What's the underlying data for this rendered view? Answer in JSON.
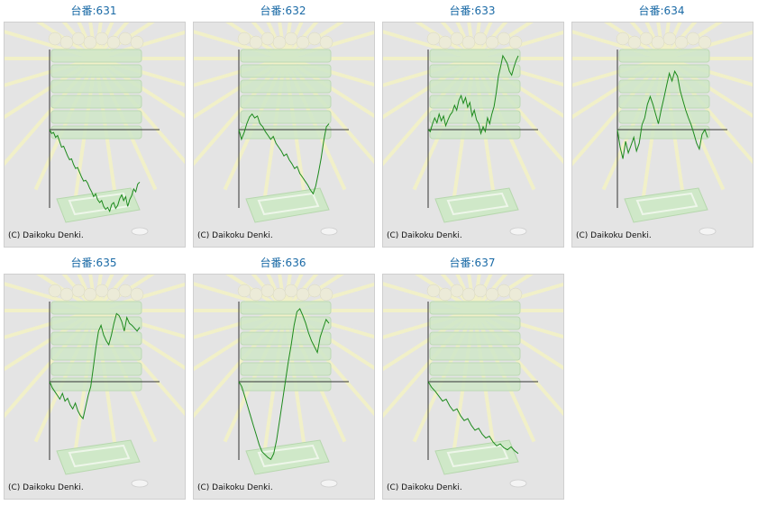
{
  "copyright": "(C) Daikoku Denki.",
  "colors": {
    "line": "#1d8a1d",
    "title": "#1a6aa6",
    "background": "#e4e4e4",
    "axis": "#333333"
  },
  "chart_data": [
    {
      "type": "line",
      "title": "台番:631",
      "y": [
        0,
        -4,
        -3,
        -8,
        -6,
        -12,
        -18,
        -17,
        -22,
        -27,
        -31,
        -30,
        -36,
        -40,
        -39,
        -44,
        -49,
        -53,
        -52,
        -55,
        -60,
        -64,
        -69,
        -66,
        -72,
        -75,
        -73,
        -79,
        -82,
        -80,
        -84,
        -77,
        -75,
        -81,
        -78,
        -71,
        -67,
        -73,
        -69,
        -79,
        -72,
        -68,
        -61,
        -64,
        -56,
        -54
      ]
    },
    {
      "type": "line",
      "title": "台番:632",
      "y": [
        0,
        -10,
        -3,
        6,
        13,
        16,
        12,
        14,
        6,
        3,
        -2,
        -6,
        -10,
        -7,
        -14,
        -18,
        -22,
        -27,
        -25,
        -31,
        -35,
        -40,
        -38,
        -45,
        -49,
        -53,
        -57,
        -62,
        -66,
        -58,
        -45,
        -30,
        -12,
        3,
        6
      ]
    },
    {
      "type": "line",
      "title": "台番:633",
      "y": [
        0,
        -2,
        6,
        12,
        7,
        16,
        9,
        14,
        4,
        10,
        15,
        18,
        25,
        20,
        30,
        35,
        27,
        33,
        23,
        28,
        14,
        20,
        10,
        6,
        -4,
        3,
        -2,
        12,
        6,
        16,
        24,
        38,
        55,
        65,
        76,
        72,
        68,
        60,
        56,
        64,
        71,
        76
      ]
    },
    {
      "type": "line",
      "title": "台番:634",
      "y": [
        0,
        -18,
        -30,
        -12,
        -24,
        -16,
        -8,
        -22,
        -14,
        5,
        12,
        26,
        34,
        26,
        16,
        6,
        20,
        32,
        45,
        58,
        50,
        60,
        55,
        40,
        30,
        20,
        12,
        5,
        -4,
        -14,
        -20,
        -5,
        0,
        -8
      ]
    },
    {
      "type": "line",
      "title": "台番:635",
      "y": [
        0,
        -6,
        -10,
        -14,
        -18,
        -12,
        -20,
        -17,
        -24,
        -28,
        -22,
        -30,
        -35,
        -38,
        -26,
        -14,
        -5,
        15,
        35,
        52,
        58,
        48,
        42,
        38,
        48,
        60,
        70,
        68,
        62,
        52,
        66,
        60,
        58,
        55,
        52,
        56
      ]
    },
    {
      "type": "line",
      "title": "台番:636",
      "y": [
        0,
        -5,
        -15,
        -25,
        -35,
        -45,
        -55,
        -65,
        -72,
        -75,
        -78,
        -80,
        -74,
        -60,
        -40,
        -20,
        0,
        20,
        38,
        58,
        72,
        75,
        68,
        60,
        50,
        42,
        36,
        30,
        46,
        55,
        64,
        60
      ]
    },
    {
      "type": "line",
      "title": "台番:637",
      "y": [
        0,
        -6,
        -10,
        -15,
        -20,
        -18,
        -25,
        -30,
        -28,
        -35,
        -40,
        -38,
        -45,
        -50,
        -48,
        -54,
        -58,
        -56,
        -62,
        -66,
        -64,
        -68,
        -70,
        -67,
        -71,
        -74
      ]
    }
  ]
}
